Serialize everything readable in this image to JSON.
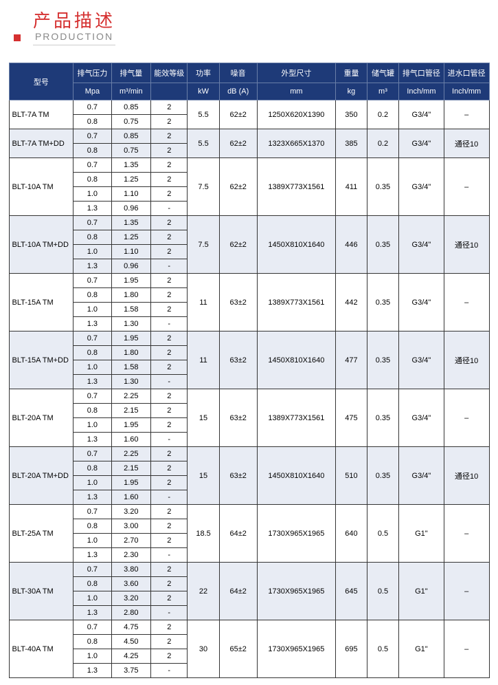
{
  "header": {
    "main": "产品描述",
    "sub": "PRODUCTION"
  },
  "columns": {
    "model": {
      "label": "型号",
      "unit": ""
    },
    "press": {
      "label": "排气压力",
      "unit": "Mpa"
    },
    "flow": {
      "label": "排气量",
      "unit": "m³/min"
    },
    "eff": {
      "label": "能效等级",
      "unit": ""
    },
    "pow": {
      "label": "功率",
      "unit": "kW"
    },
    "noise": {
      "label": "噪音",
      "unit": "dB (A)"
    },
    "dim": {
      "label": "外型尺寸",
      "unit": "mm"
    },
    "wt": {
      "label": "重量",
      "unit": "kg"
    },
    "tank": {
      "label": "储气罐",
      "unit": "m³"
    },
    "out": {
      "label": "排气口管径",
      "unit": "Inch/mm"
    },
    "in": {
      "label": "进水口管径",
      "unit": "Inch/mm"
    }
  },
  "models": [
    {
      "name": "BLT-7A TM",
      "pow": "5.5",
      "noise": "62±2",
      "dim": "1250X620X1390",
      "wt": "350",
      "tank": "0.2",
      "out": "G3/4\"",
      "in": "–",
      "shade": "white",
      "subs": [
        {
          "press": "0.7",
          "flow": "0.85",
          "eff": "2"
        },
        {
          "press": "0.8",
          "flow": "0.75",
          "eff": "2"
        }
      ]
    },
    {
      "name": "BLT-7A TM+DD",
      "pow": "5.5",
      "noise": "62±2",
      "dim": "1323X665X1370",
      "wt": "385",
      "tank": "0.2",
      "out": "G3/4\"",
      "in": "通径10",
      "shade": "gray",
      "subs": [
        {
          "press": "0.7",
          "flow": "0.85",
          "eff": "2"
        },
        {
          "press": "0.8",
          "flow": "0.75",
          "eff": "2"
        }
      ]
    },
    {
      "name": "BLT-10A TM",
      "pow": "7.5",
      "noise": "62±2",
      "dim": "1389X773X1561",
      "wt": "411",
      "tank": "0.35",
      "out": "G3/4\"",
      "in": "–",
      "shade": "white",
      "subs": [
        {
          "press": "0.7",
          "flow": "1.35",
          "eff": "2"
        },
        {
          "press": "0.8",
          "flow": "1.25",
          "eff": "2"
        },
        {
          "press": "1.0",
          "flow": "1.10",
          "eff": "2"
        },
        {
          "press": "1.3",
          "flow": "0.96",
          "eff": "-"
        }
      ]
    },
    {
      "name": "BLT-10A TM+DD",
      "pow": "7.5",
      "noise": "62±2",
      "dim": "1450X810X1640",
      "wt": "446",
      "tank": "0.35",
      "out": "G3/4\"",
      "in": "通径10",
      "shade": "gray",
      "subs": [
        {
          "press": "0.7",
          "flow": "1.35",
          "eff": "2"
        },
        {
          "press": "0.8",
          "flow": "1.25",
          "eff": "2"
        },
        {
          "press": "1.0",
          "flow": "1.10",
          "eff": "2"
        },
        {
          "press": "1.3",
          "flow": "0.96",
          "eff": "-"
        }
      ]
    },
    {
      "name": "BLT-15A TM",
      "pow": "11",
      "noise": "63±2",
      "dim": "1389X773X1561",
      "wt": "442",
      "tank": "0.35",
      "out": "G3/4\"",
      "in": "–",
      "shade": "white",
      "subs": [
        {
          "press": "0.7",
          "flow": "1.95",
          "eff": "2"
        },
        {
          "press": "0.8",
          "flow": "1.80",
          "eff": "2"
        },
        {
          "press": "1.0",
          "flow": "1.58",
          "eff": "2"
        },
        {
          "press": "1.3",
          "flow": "1.30",
          "eff": "-"
        }
      ]
    },
    {
      "name": "BLT-15A TM+DD",
      "pow": "11",
      "noise": "63±2",
      "dim": "1450X810X1640",
      "wt": "477",
      "tank": "0.35",
      "out": "G3/4\"",
      "in": "通径10",
      "shade": "gray",
      "subs": [
        {
          "press": "0.7",
          "flow": "1.95",
          "eff": "2"
        },
        {
          "press": "0.8",
          "flow": "1.80",
          "eff": "2"
        },
        {
          "press": "1.0",
          "flow": "1.58",
          "eff": "2"
        },
        {
          "press": "1.3",
          "flow": "1.30",
          "eff": "-"
        }
      ]
    },
    {
      "name": "BLT-20A TM",
      "pow": "15",
      "noise": "63±2",
      "dim": "1389X773X1561",
      "wt": "475",
      "tank": "0.35",
      "out": "G3/4\"",
      "in": "–",
      "shade": "white",
      "subs": [
        {
          "press": "0.7",
          "flow": "2.25",
          "eff": "2"
        },
        {
          "press": "0.8",
          "flow": "2.15",
          "eff": "2"
        },
        {
          "press": "1.0",
          "flow": "1.95",
          "eff": "2"
        },
        {
          "press": "1.3",
          "flow": "1.60",
          "eff": "-"
        }
      ]
    },
    {
      "name": "BLT-20A TM+DD",
      "pow": "15",
      "noise": "63±2",
      "dim": "1450X810X1640",
      "wt": "510",
      "tank": "0.35",
      "out": "G3/4\"",
      "in": "通径10",
      "shade": "gray",
      "subs": [
        {
          "press": "0.7",
          "flow": "2.25",
          "eff": "2"
        },
        {
          "press": "0.8",
          "flow": "2.15",
          "eff": "2"
        },
        {
          "press": "1.0",
          "flow": "1.95",
          "eff": "2"
        },
        {
          "press": "1.3",
          "flow": "1.60",
          "eff": "-"
        }
      ]
    },
    {
      "name": "BLT-25A TM",
      "pow": "18.5",
      "noise": "64±2",
      "dim": "1730X965X1965",
      "wt": "640",
      "tank": "0.5",
      "out": "G1\"",
      "in": "–",
      "shade": "white",
      "subs": [
        {
          "press": "0.7",
          "flow": "3.20",
          "eff": "2"
        },
        {
          "press": "0.8",
          "flow": "3.00",
          "eff": "2"
        },
        {
          "press": "1.0",
          "flow": "2.70",
          "eff": "2"
        },
        {
          "press": "1.3",
          "flow": "2.30",
          "eff": "-"
        }
      ]
    },
    {
      "name": "BLT-30A TM",
      "pow": "22",
      "noise": "64±2",
      "dim": "1730X965X1965",
      "wt": "645",
      "tank": "0.5",
      "out": "G1\"",
      "in": "–",
      "shade": "gray",
      "subs": [
        {
          "press": "0.7",
          "flow": "3.80",
          "eff": "2"
        },
        {
          "press": "0.8",
          "flow": "3.60",
          "eff": "2"
        },
        {
          "press": "1.0",
          "flow": "3.20",
          "eff": "2"
        },
        {
          "press": "1.3",
          "flow": "2.80",
          "eff": "-"
        }
      ]
    },
    {
      "name": "BLT-40A TM",
      "pow": "30",
      "noise": "65±2",
      "dim": "1730X965X1965",
      "wt": "695",
      "tank": "0.5",
      "out": "G1\"",
      "in": "–",
      "shade": "white",
      "subs": [
        {
          "press": "0.7",
          "flow": "4.75",
          "eff": "2"
        },
        {
          "press": "0.8",
          "flow": "4.50",
          "eff": "2"
        },
        {
          "press": "1.0",
          "flow": "4.25",
          "eff": "2"
        },
        {
          "press": "1.3",
          "flow": "3.75",
          "eff": "-"
        }
      ]
    }
  ]
}
